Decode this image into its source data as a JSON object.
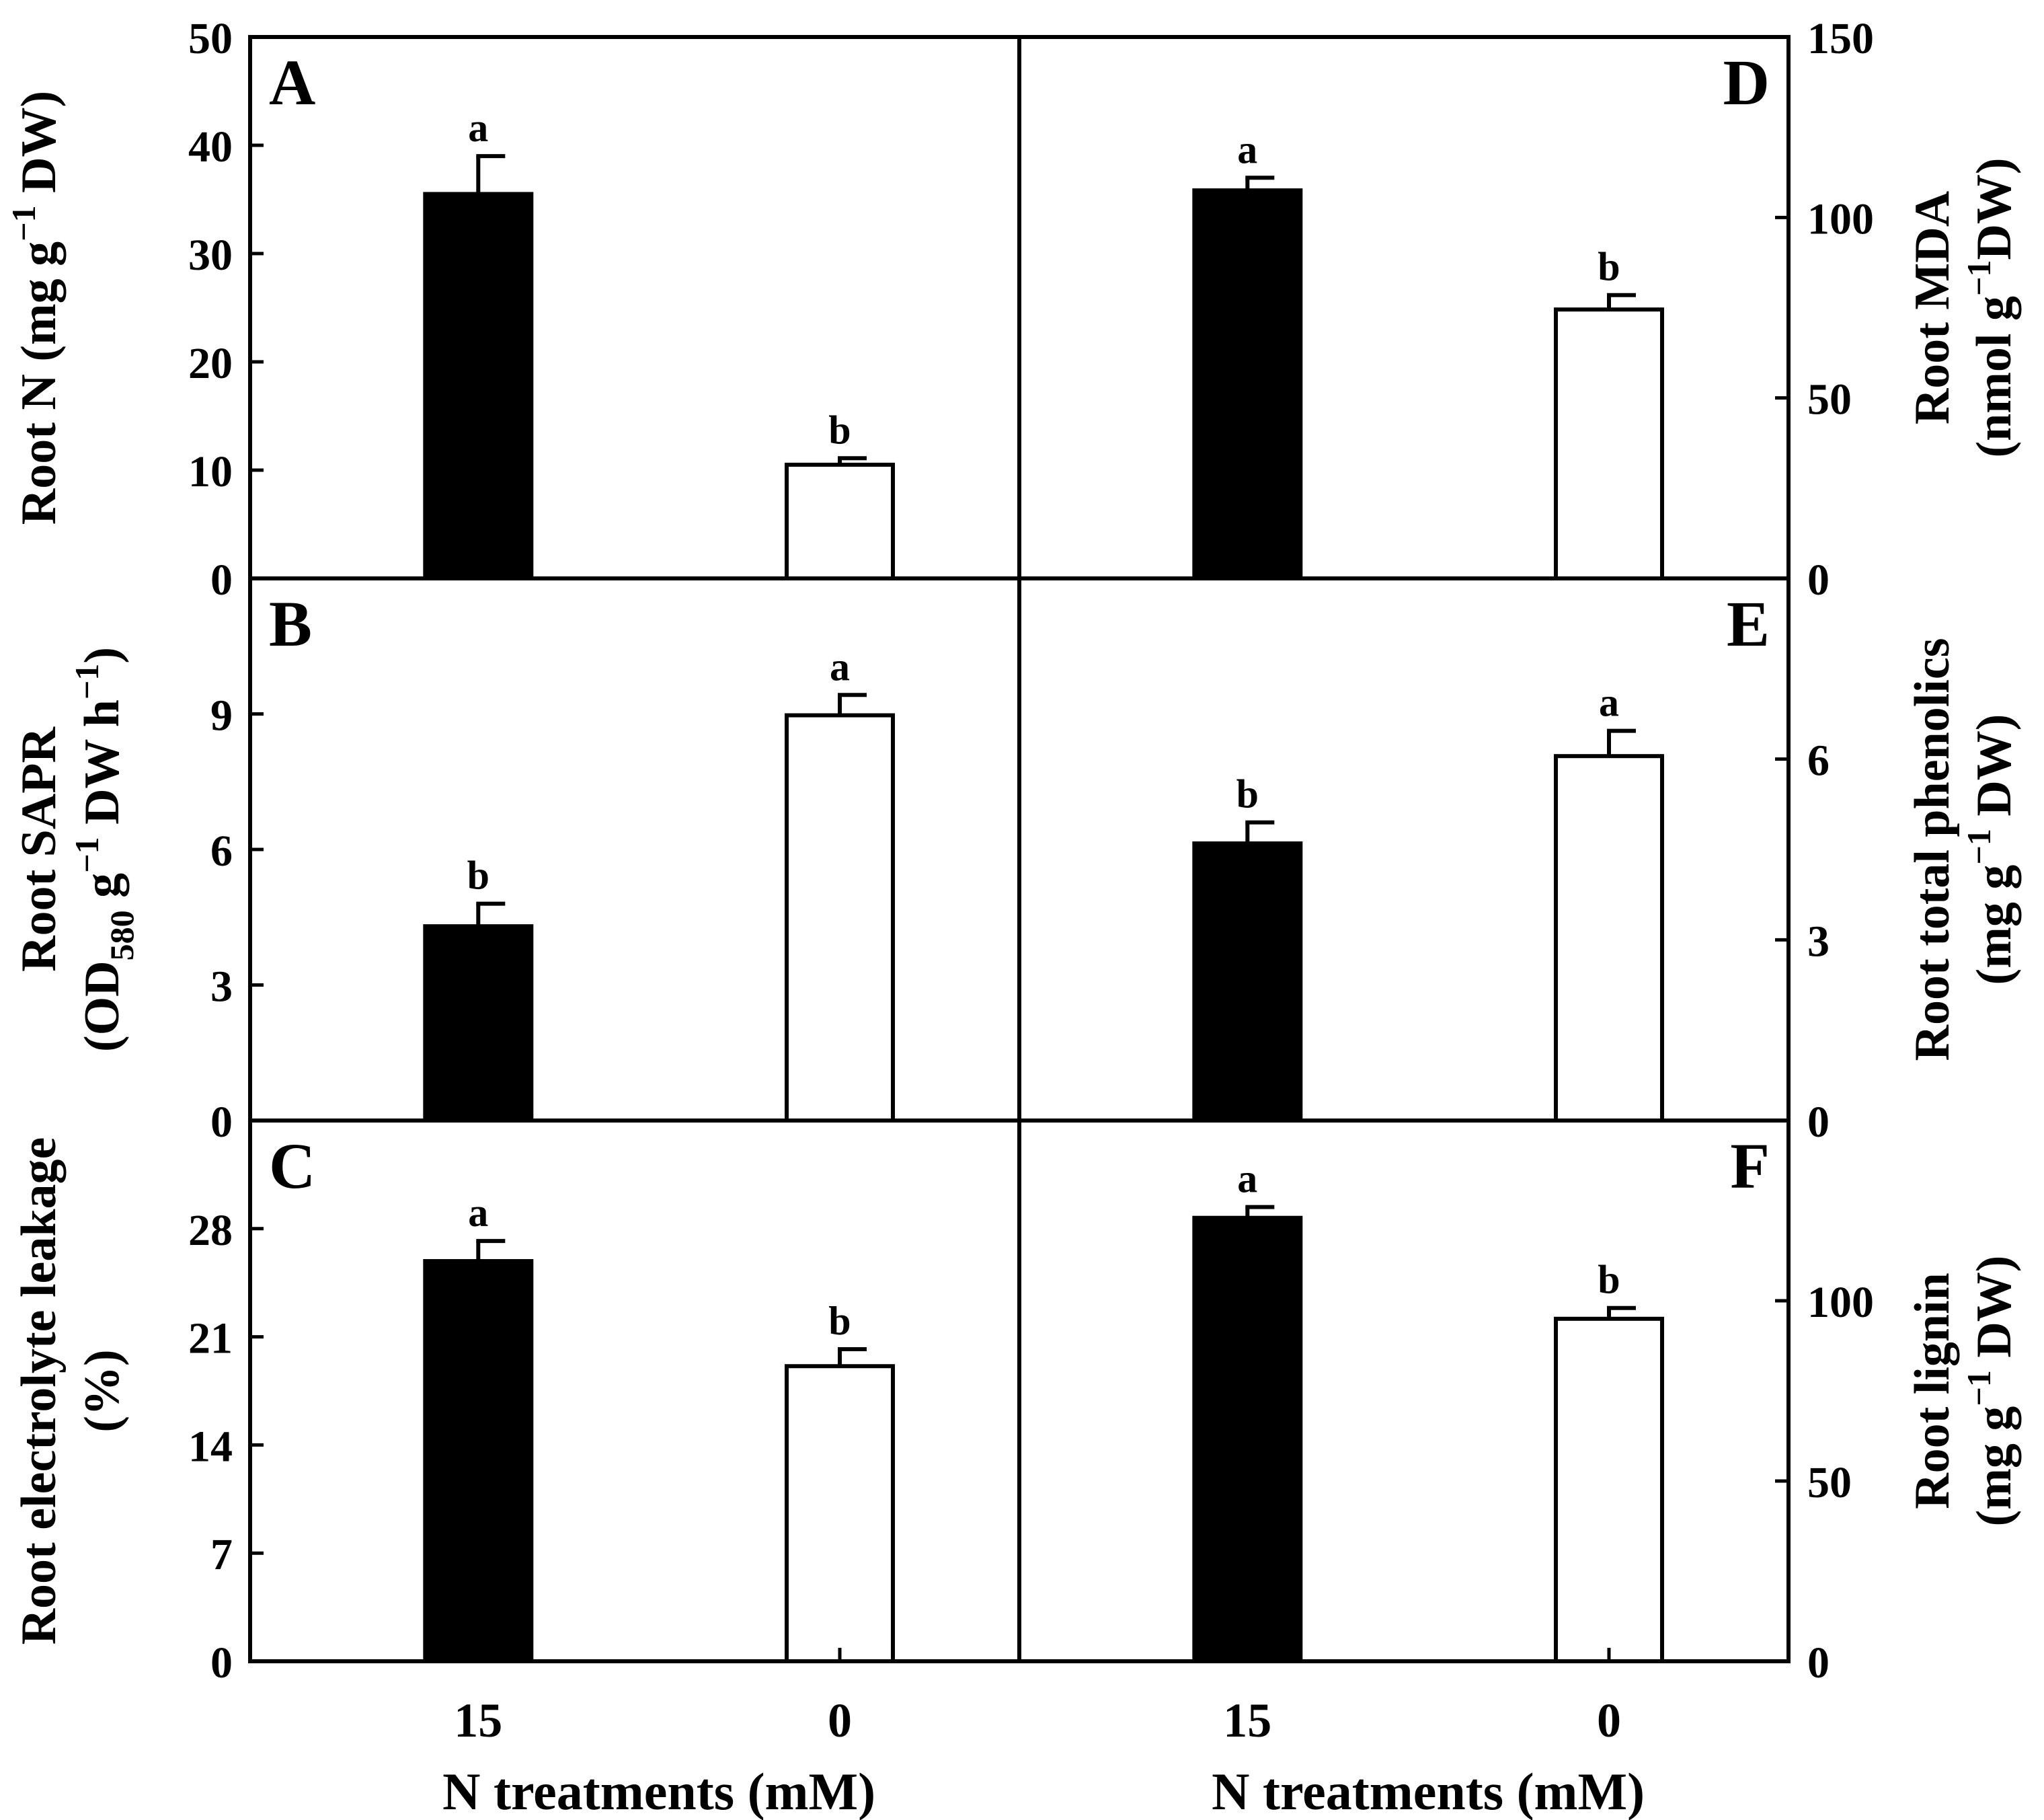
{
  "x_axis": {
    "title": "N treatments (mM)",
    "tick_labels": [
      "15",
      "0"
    ]
  },
  "colors": {
    "bar_15": "#000000",
    "bar_0": "#ffffff",
    "stroke": "#000000"
  },
  "chart_data": [
    {
      "panel": "A",
      "type": "bar",
      "yaxis_side": "left",
      "ylabel_lines": [
        [
          "Root N (mg g",
          "−1",
          " DW)"
        ]
      ],
      "categories": [
        "15",
        "0"
      ],
      "values": [
        35.5,
        10.5
      ],
      "errors": [
        3.5,
        0.6
      ],
      "letters": [
        "a",
        "b"
      ],
      "ylim": [
        0,
        50
      ],
      "yticks": [
        0,
        10,
        20,
        30,
        40,
        50
      ],
      "ytick_labels": [
        "0",
        "10",
        "20",
        "30",
        "40",
        "50"
      ]
    },
    {
      "panel": "B",
      "type": "bar",
      "yaxis_side": "left",
      "ylabel_lines": [
        [
          "Root SAPR"
        ],
        [
          "(OD",
          "580",
          " g",
          "−1",
          " DW h",
          "−1",
          ")"
        ]
      ],
      "categories": [
        "15",
        "0"
      ],
      "values": [
        4.3,
        8.97
      ],
      "errors": [
        0.5,
        0.45
      ],
      "letters": [
        "b",
        "a"
      ],
      "ylim": [
        0,
        12
      ],
      "yticks": [
        0,
        3,
        6,
        9
      ],
      "ytick_labels": [
        "0",
        "3",
        "6",
        "9"
      ]
    },
    {
      "panel": "C",
      "type": "bar",
      "yaxis_side": "left",
      "ylabel_lines": [
        [
          "Root electrolyte leakage"
        ],
        [
          "(%)"
        ]
      ],
      "categories": [
        "15",
        "0"
      ],
      "values": [
        25.9,
        19.1
      ],
      "errors": [
        1.3,
        1.1
      ],
      "letters": [
        "a",
        "b"
      ],
      "ylim": [
        0,
        35
      ],
      "yticks": [
        0,
        7,
        14,
        21,
        28
      ],
      "ytick_labels": [
        "0",
        "7",
        "14",
        "21",
        "28"
      ]
    },
    {
      "panel": "D",
      "type": "bar",
      "yaxis_side": "right",
      "ylabel_lines": [
        [
          "Root MDA"
        ],
        [
          "(nmol g",
          "−1",
          "DW)"
        ]
      ],
      "categories": [
        "15",
        "0"
      ],
      "values": [
        107.5,
        74.5
      ],
      "errors": [
        3.5,
        4.0
      ],
      "letters": [
        "a",
        "b"
      ],
      "ylim": [
        0,
        150
      ],
      "yticks": [
        0,
        50,
        100,
        150
      ],
      "ytick_labels": [
        "0",
        "50",
        "100",
        "150"
      ]
    },
    {
      "panel": "E",
      "type": "bar",
      "yaxis_side": "right",
      "ylabel_lines": [
        [
          "Root total phenolics"
        ],
        [
          "(mg g",
          "−1",
          " DW)"
        ]
      ],
      "categories": [
        "15",
        "0"
      ],
      "values": [
        4.6,
        6.05
      ],
      "errors": [
        0.35,
        0.42
      ],
      "letters": [
        "b",
        "a"
      ],
      "ylim": [
        0,
        9
      ],
      "yticks": [
        0,
        3,
        6
      ],
      "ytick_labels": [
        "0",
        "3",
        "6"
      ]
    },
    {
      "panel": "F",
      "type": "bar",
      "yaxis_side": "right",
      "ylabel_lines": [
        [
          "Root lignin"
        ],
        [
          "(mg g",
          "−1",
          " DW)"
        ]
      ],
      "categories": [
        "15",
        "0"
      ],
      "values": [
        123,
        95
      ],
      "errors": [
        3.0,
        3.0
      ],
      "letters": [
        "a",
        "b"
      ],
      "ylim": [
        0,
        150
      ],
      "yticks": [
        0,
        50,
        100
      ],
      "ytick_labels": [
        "0",
        "50",
        "100"
      ]
    }
  ]
}
